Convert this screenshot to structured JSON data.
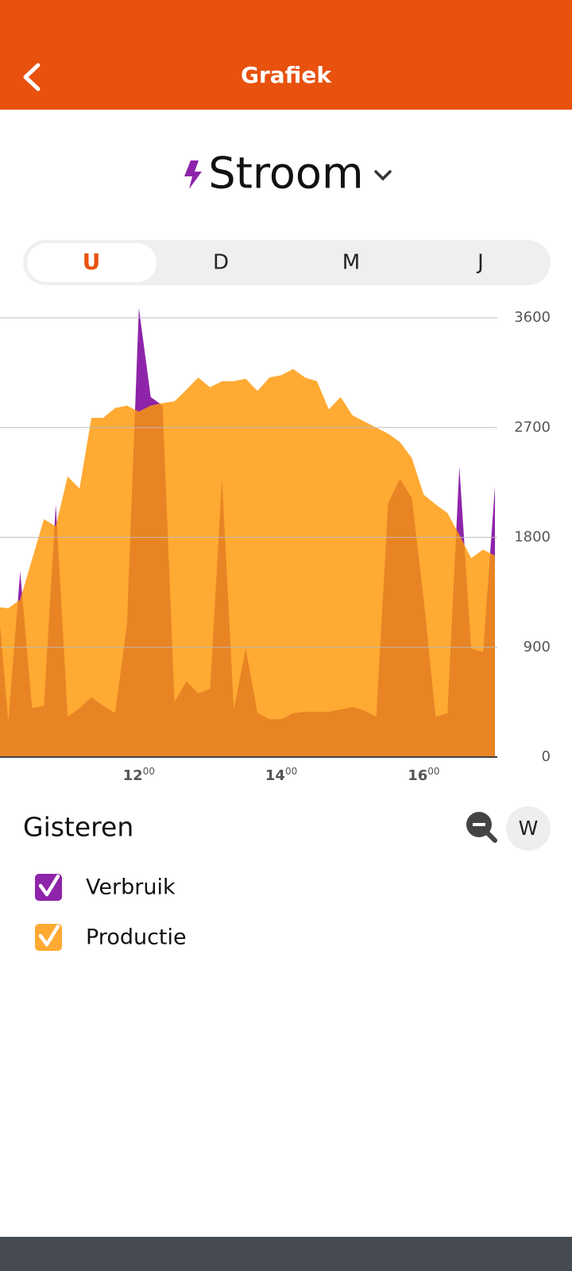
{
  "header": {
    "title": "Grafiek"
  },
  "selector": {
    "label": "Stroom"
  },
  "tabs": [
    "U",
    "D",
    "M",
    "J"
  ],
  "period_label": "Gisteren",
  "unit_button": "W",
  "chart_data": {
    "type": "area",
    "x": [
      600,
      610,
      620,
      630,
      640,
      650,
      660,
      670,
      680,
      690,
      700,
      710,
      720,
      730,
      740,
      750,
      760,
      770,
      780,
      790,
      800,
      810,
      820,
      830,
      840,
      850,
      860,
      870,
      880,
      890,
      900,
      910,
      920,
      930,
      940,
      950,
      960,
      970,
      980,
      990,
      1000,
      1010,
      1020
    ],
    "xlim": [
      603,
      1022
    ],
    "xticks": [
      {
        "value": 720,
        "label": "12",
        "sup": "00"
      },
      {
        "value": 840,
        "label": "14",
        "sup": "00"
      },
      {
        "value": 960,
        "label": "16",
        "sup": "00"
      }
    ],
    "ylim": [
      0,
      3600
    ],
    "yticks": [
      0,
      900,
      1800,
      2700,
      3600
    ],
    "grid": true,
    "series": [
      {
        "name": "Verbruik",
        "color": "#8e24aa",
        "values": [
          1420,
          290,
          1520,
          400,
          420,
          2070,
          330,
          400,
          490,
          420,
          360,
          1090,
          3680,
          2950,
          2880,
          450,
          620,
          520,
          560,
          2280,
          390,
          890,
          360,
          310,
          310,
          360,
          370,
          370,
          370,
          390,
          410,
          380,
          330,
          2080,
          2280,
          2120,
          1290,
          330,
          360,
          2380,
          890,
          860,
          2220
        ]
      },
      {
        "name": "Productie",
        "color": "#ffaa33",
        "values": [
          1230,
          1220,
          1290,
          1620,
          1950,
          1890,
          2300,
          2200,
          2780,
          2780,
          2860,
          2880,
          2830,
          2880,
          2900,
          2915,
          3010,
          3110,
          3030,
          3080,
          3080,
          3100,
          3000,
          3110,
          3130,
          3180,
          3110,
          3080,
          2850,
          2950,
          2800,
          2750,
          2700,
          2650,
          2580,
          2450,
          2150,
          2070,
          2000,
          1820,
          1630,
          1700,
          1650
        ]
      }
    ]
  }
}
